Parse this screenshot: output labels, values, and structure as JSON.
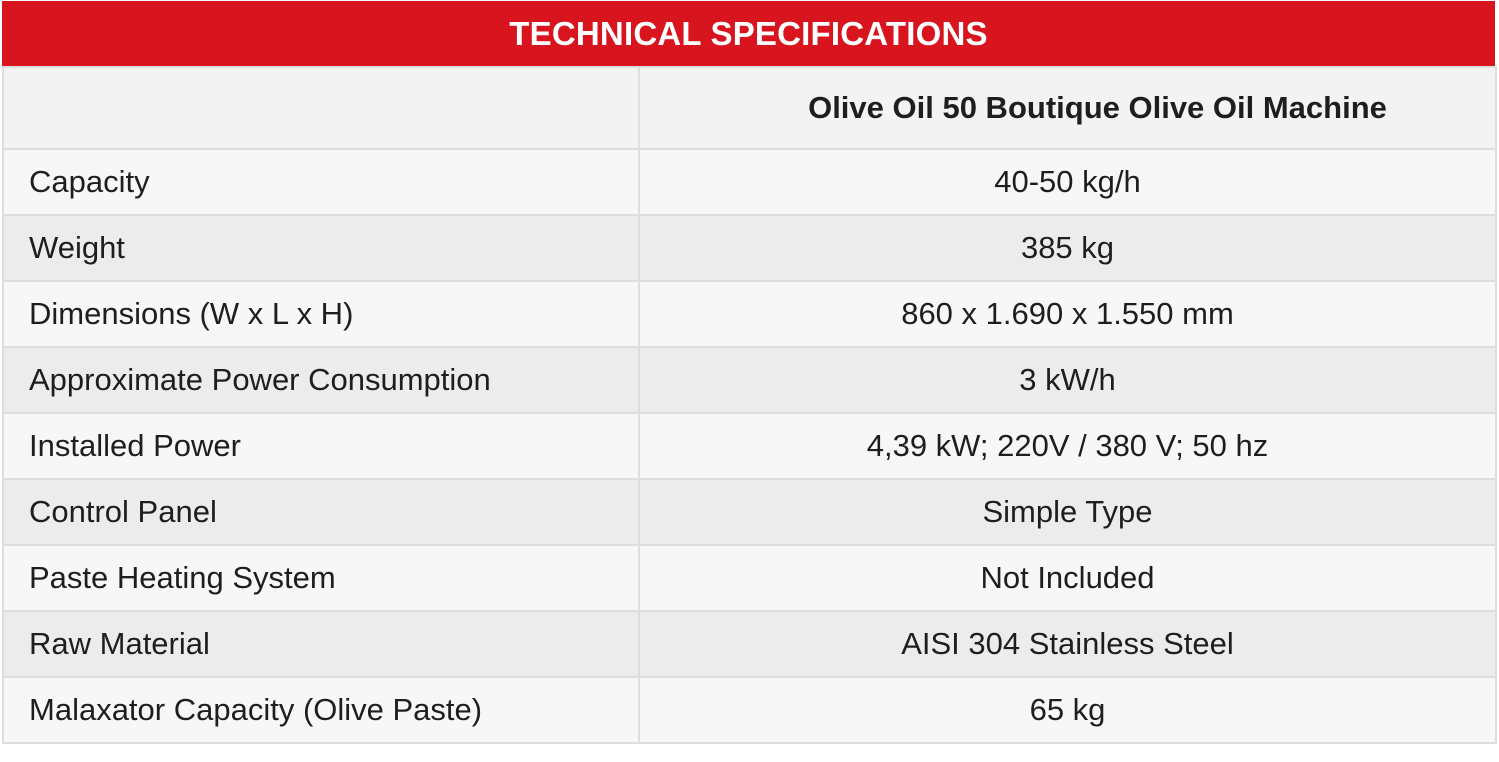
{
  "title": "TECHNICAL SPECIFICATIONS",
  "table": {
    "column_header": "Olive Oil 50  Boutique Olive Oil Machine",
    "rows": [
      {
        "label": "Capacity",
        "value": "40-50 kg/h"
      },
      {
        "label": "Weight",
        "value": "385 kg"
      },
      {
        "label": "Dimensions (W x L x H)",
        "value": "860 x 1.690 x 1.550 mm"
      },
      {
        "label": "Approximate Power Consumption",
        "value": "3 kW/h"
      },
      {
        "label": "Installed Power",
        "value": "4,39 kW; 220V / 380 V; 50 hz"
      },
      {
        "label": "Control Panel",
        "value": "Simple Type"
      },
      {
        "label": "Paste Heating System",
        "value": "Not Included"
      },
      {
        "label": "Raw Material",
        "value": "AISI 304 Stainless Steel"
      },
      {
        "label": "Malaxator Capacity (Olive Paste)",
        "value": "65 kg"
      }
    ]
  },
  "colors": {
    "header_red": "#d8141e",
    "row_light": "#f7f7f7",
    "row_dark": "#ececec",
    "border": "#dedede"
  }
}
